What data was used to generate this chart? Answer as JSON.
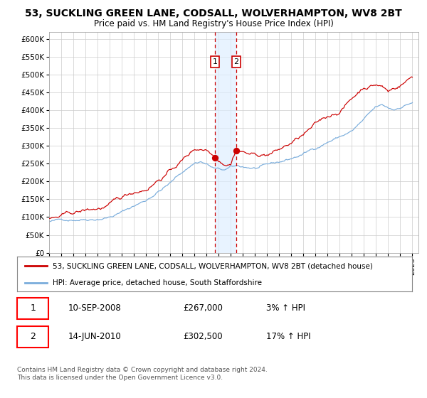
{
  "title": "53, SUCKLING GREEN LANE, CODSALL, WOLVERHAMPTON, WV8 2BT",
  "subtitle": "Price paid vs. HM Land Registry's House Price Index (HPI)",
  "title_fontsize": 10,
  "subtitle_fontsize": 8.5,
  "ylim": [
    0,
    620000
  ],
  "yticks": [
    0,
    50000,
    100000,
    150000,
    200000,
    250000,
    300000,
    350000,
    400000,
    450000,
    500000,
    550000,
    600000
  ],
  "ytick_labels": [
    "£0",
    "£50K",
    "£100K",
    "£150K",
    "£200K",
    "£250K",
    "£300K",
    "£350K",
    "£400K",
    "£450K",
    "£500K",
    "£550K",
    "£600K"
  ],
  "hpi_color": "#7aaddc",
  "price_color": "#cc0000",
  "marker_color": "#cc0000",
  "sale1_date_num": 2008.69,
  "sale1_price": 267000,
  "sale2_date_num": 2010.45,
  "sale2_price": 302500,
  "legend_label_price": "53, SUCKLING GREEN LANE, CODSALL, WOLVERHAMPTON, WV8 2BT (detached house)",
  "legend_label_hpi": "HPI: Average price, detached house, South Staffordshire",
  "annotation1_label": "1",
  "annotation2_label": "2",
  "annot1_date": "10-SEP-2008",
  "annot1_price": "£267,000",
  "annot1_hpi": "3% ↑ HPI",
  "annot2_date": "14-JUN-2010",
  "annot2_price": "£302,500",
  "annot2_hpi": "17% ↑ HPI",
  "footer1": "Contains HM Land Registry data © Crown copyright and database right 2024.",
  "footer2": "This data is licensed under the Open Government Licence v3.0.",
  "background_color": "#ffffff",
  "grid_color": "#cccccc",
  "shade_color": "#ddeeff"
}
